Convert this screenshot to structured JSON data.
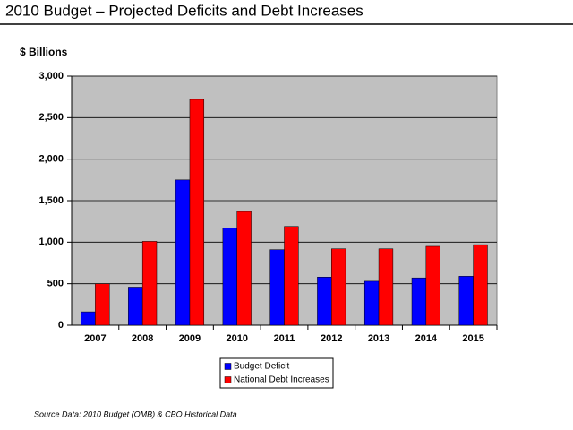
{
  "chart_data": {
    "type": "bar",
    "title": "2010 Budget – Projected Deficits and Debt Increases",
    "y_label": "$ Billions",
    "source": "Source Data: 2010 Budget (OMB) & CBO Historical Data",
    "categories": [
      "2007",
      "2008",
      "2009",
      "2010",
      "2011",
      "2012",
      "2013",
      "2014",
      "2015"
    ],
    "series": [
      {
        "name": "Budget Deficit",
        "color": "#0000ff",
        "values": [
          161,
          459,
          1750,
          1170,
          910,
          580,
          530,
          570,
          590
        ]
      },
      {
        "name": "National Debt Increases",
        "color": "#ff0000",
        "values": [
          500,
          1010,
          2720,
          1370,
          1190,
          920,
          920,
          950,
          970
        ]
      }
    ],
    "ylim": [
      0,
      3000
    ],
    "yticks": [
      0,
      500,
      {
        "value": 1000,
        "label": "1,000"
      },
      {
        "value": 1500,
        "label": "1,500"
      },
      {
        "value": 2000,
        "label": "2,000"
      },
      {
        "value": 2500,
        "label": "2,500"
      },
      {
        "value": 3000,
        "label": "3,000"
      }
    ],
    "grid": true,
    "plot_background": "#c0c0c0"
  }
}
